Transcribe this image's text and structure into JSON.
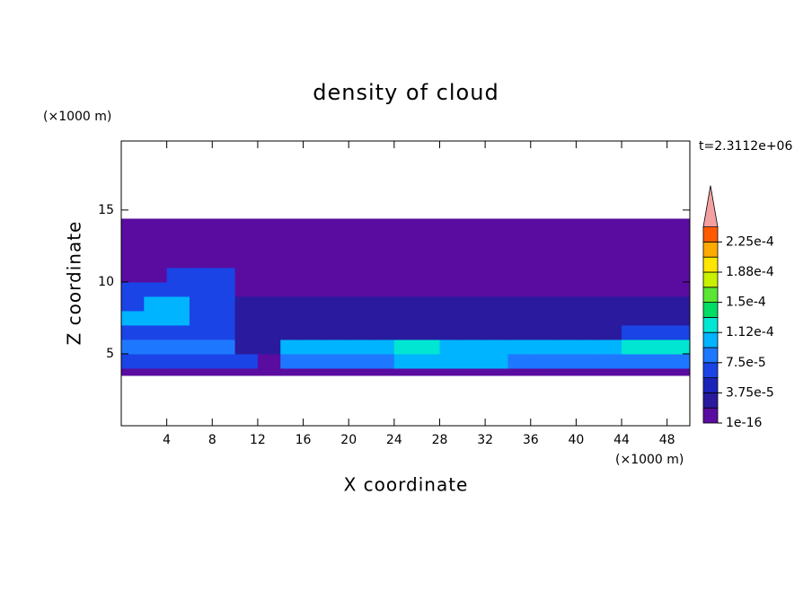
{
  "chart_data": {
    "type": "contour",
    "title": "density of cloud",
    "subtitle": "t=2.3112e+06",
    "x_label": "X coordinate",
    "y_label": "Z coordinate",
    "x_unit": "(×1000 m)",
    "y_unit": "(×1000 m)",
    "xlim": [
      0,
      50
    ],
    "ylim": [
      0,
      19.8
    ],
    "xticks": [
      4,
      8,
      12,
      16,
      20,
      24,
      28,
      32,
      36,
      40,
      44,
      48
    ],
    "yticks": [
      5,
      10,
      15
    ],
    "x_edges": [
      0,
      2,
      4,
      6,
      8,
      10,
      12,
      14,
      16,
      18,
      20,
      22,
      24,
      26,
      28,
      30,
      32,
      34,
      36,
      38,
      40,
      42,
      44,
      46,
      48,
      50
    ],
    "z_edges": [
      3.5,
      4,
      5,
      6,
      7,
      8,
      9,
      10,
      11,
      12,
      13,
      14,
      14.4
    ],
    "values": [
      [
        1e-05,
        1e-05,
        1e-05,
        1e-05,
        1e-05,
        1e-05,
        1e-05,
        1e-05,
        1e-05,
        1e-05,
        1e-05,
        1e-05,
        1e-05,
        1e-05,
        1e-05,
        1e-05,
        1e-05,
        1e-05,
        1e-05,
        1e-05,
        1e-05,
        1e-05,
        1e-05,
        1e-05,
        1e-05
      ],
      [
        6e-05,
        6e-05,
        6e-05,
        6e-05,
        6e-05,
        6e-05,
        1e-05,
        8e-05,
        8e-05,
        8e-05,
        8e-05,
        8e-05,
        0.0001,
        0.0001,
        0.0001,
        0.0001,
        0.0001,
        8e-05,
        8e-05,
        8e-05,
        8e-05,
        8e-05,
        8e-05,
        8e-05,
        8e-05
      ],
      [
        8e-05,
        8e-05,
        8e-05,
        8e-05,
        8e-05,
        3e-05,
        3e-05,
        0.0001,
        0.0001,
        0.0001,
        0.0001,
        0.0001,
        0.00012,
        0.00012,
        0.0001,
        0.0001,
        0.0001,
        0.0001,
        0.0001,
        0.0001,
        0.0001,
        0.0001,
        0.00012,
        0.00012,
        0.00012
      ],
      [
        6e-05,
        6e-05,
        6e-05,
        6e-05,
        6e-05,
        3e-05,
        3e-05,
        3e-05,
        3e-05,
        3e-05,
        3e-05,
        3e-05,
        3e-05,
        3e-05,
        3e-05,
        3e-05,
        3e-05,
        3e-05,
        3e-05,
        3e-05,
        3e-05,
        3e-05,
        6e-05,
        6e-05,
        6e-05
      ],
      [
        0.0001,
        0.0001,
        0.0001,
        6e-05,
        6e-05,
        3e-05,
        3e-05,
        3e-05,
        3e-05,
        3e-05,
        3e-05,
        3e-05,
        3e-05,
        3e-05,
        3e-05,
        3e-05,
        3e-05,
        3e-05,
        3e-05,
        3e-05,
        3e-05,
        3e-05,
        3e-05,
        3e-05,
        3e-05
      ],
      [
        6e-05,
        0.0001,
        0.0001,
        6e-05,
        6e-05,
        3e-05,
        3e-05,
        3e-05,
        3e-05,
        3e-05,
        3e-05,
        3e-05,
        3e-05,
        3e-05,
        3e-05,
        3e-05,
        3e-05,
        3e-05,
        3e-05,
        3e-05,
        3e-05,
        3e-05,
        3e-05,
        3e-05,
        3e-05
      ],
      [
        6e-05,
        6e-05,
        6e-05,
        6e-05,
        6e-05,
        1e-05,
        1e-05,
        1e-05,
        1e-05,
        1e-05,
        1e-05,
        1e-05,
        1e-05,
        1e-05,
        1e-05,
        1e-05,
        1e-05,
        1e-05,
        1e-05,
        1e-05,
        1e-05,
        1e-05,
        1e-05,
        1e-05,
        1e-05
      ],
      [
        1e-05,
        1e-05,
        6e-05,
        6e-05,
        6e-05,
        1e-05,
        1e-05,
        1e-05,
        1e-05,
        1e-05,
        1e-05,
        1e-05,
        1e-05,
        1e-05,
        1e-05,
        1e-05,
        1e-05,
        1e-05,
        1e-05,
        1e-05,
        1e-05,
        1e-05,
        1e-05,
        1e-05,
        1e-05
      ],
      [
        1e-05,
        1e-05,
        1e-05,
        1e-05,
        1e-05,
        1e-05,
        1e-05,
        1e-05,
        1e-05,
        1e-05,
        1e-05,
        1e-05,
        1e-05,
        1e-05,
        1e-05,
        1e-05,
        1e-05,
        1e-05,
        1e-05,
        1e-05,
        1e-05,
        1e-05,
        1e-05,
        1e-05,
        1e-05
      ],
      [
        1e-05,
        1e-05,
        1e-05,
        1e-05,
        1e-05,
        1e-05,
        1e-05,
        1e-05,
        1e-05,
        1e-05,
        1e-05,
        1e-05,
        1e-05,
        1e-05,
        1e-05,
        1e-05,
        1e-05,
        1e-05,
        1e-05,
        1e-05,
        1e-05,
        1e-05,
        1e-05,
        1e-05,
        1e-05
      ],
      [
        1e-05,
        1e-05,
        1e-05,
        1e-05,
        1e-05,
        1e-05,
        1e-05,
        1e-05,
        1e-05,
        1e-05,
        1e-05,
        1e-05,
        1e-05,
        1e-05,
        1e-05,
        1e-05,
        1e-05,
        1e-05,
        1e-05,
        1e-05,
        1e-05,
        1e-05,
        1e-05,
        1e-05,
        1e-05
      ],
      [
        1e-05,
        1e-05,
        1e-05,
        1e-05,
        1e-05,
        1e-05,
        1e-05,
        1e-05,
        1e-05,
        1e-05,
        1e-05,
        1e-05,
        1e-05,
        1e-05,
        1e-05,
        1e-05,
        1e-05,
        1e-05,
        1e-05,
        1e-05,
        1e-05,
        1e-05,
        1e-05,
        1e-05,
        1e-05
      ]
    ],
    "colorbar": {
      "levels": [
        1e-16,
        1.875e-05,
        3.75e-05,
        5.625e-05,
        7.5e-05,
        9.375e-05,
        0.0001125,
        0.00013125,
        0.00015,
        0.00016875,
        0.0001875,
        0.00020625,
        0.000225,
        0.00024375
      ],
      "colors": [
        "#5a0ca0",
        "#2a1a9e",
        "#1a24b8",
        "#1a44e6",
        "#1e78ff",
        "#00b4ff",
        "#00e6d2",
        "#00dc64",
        "#5ae632",
        "#c8f000",
        "#ffe600",
        "#ffaa00",
        "#ff5a00"
      ],
      "extend_color": "#f4a0a0",
      "ticks": [
        {
          "value": 1e-16,
          "label": "1e-16"
        },
        {
          "value": 3.75e-05,
          "label": "3.75e-5"
        },
        {
          "value": 7.5e-05,
          "label": "7.5e-5"
        },
        {
          "value": 0.0001125,
          "label": "1.12e-4"
        },
        {
          "value": 0.00015,
          "label": "1.5e-4"
        },
        {
          "value": 0.0001875,
          "label": "1.88e-4"
        },
        {
          "value": 0.000225,
          "label": "2.25e-4"
        }
      ]
    }
  }
}
